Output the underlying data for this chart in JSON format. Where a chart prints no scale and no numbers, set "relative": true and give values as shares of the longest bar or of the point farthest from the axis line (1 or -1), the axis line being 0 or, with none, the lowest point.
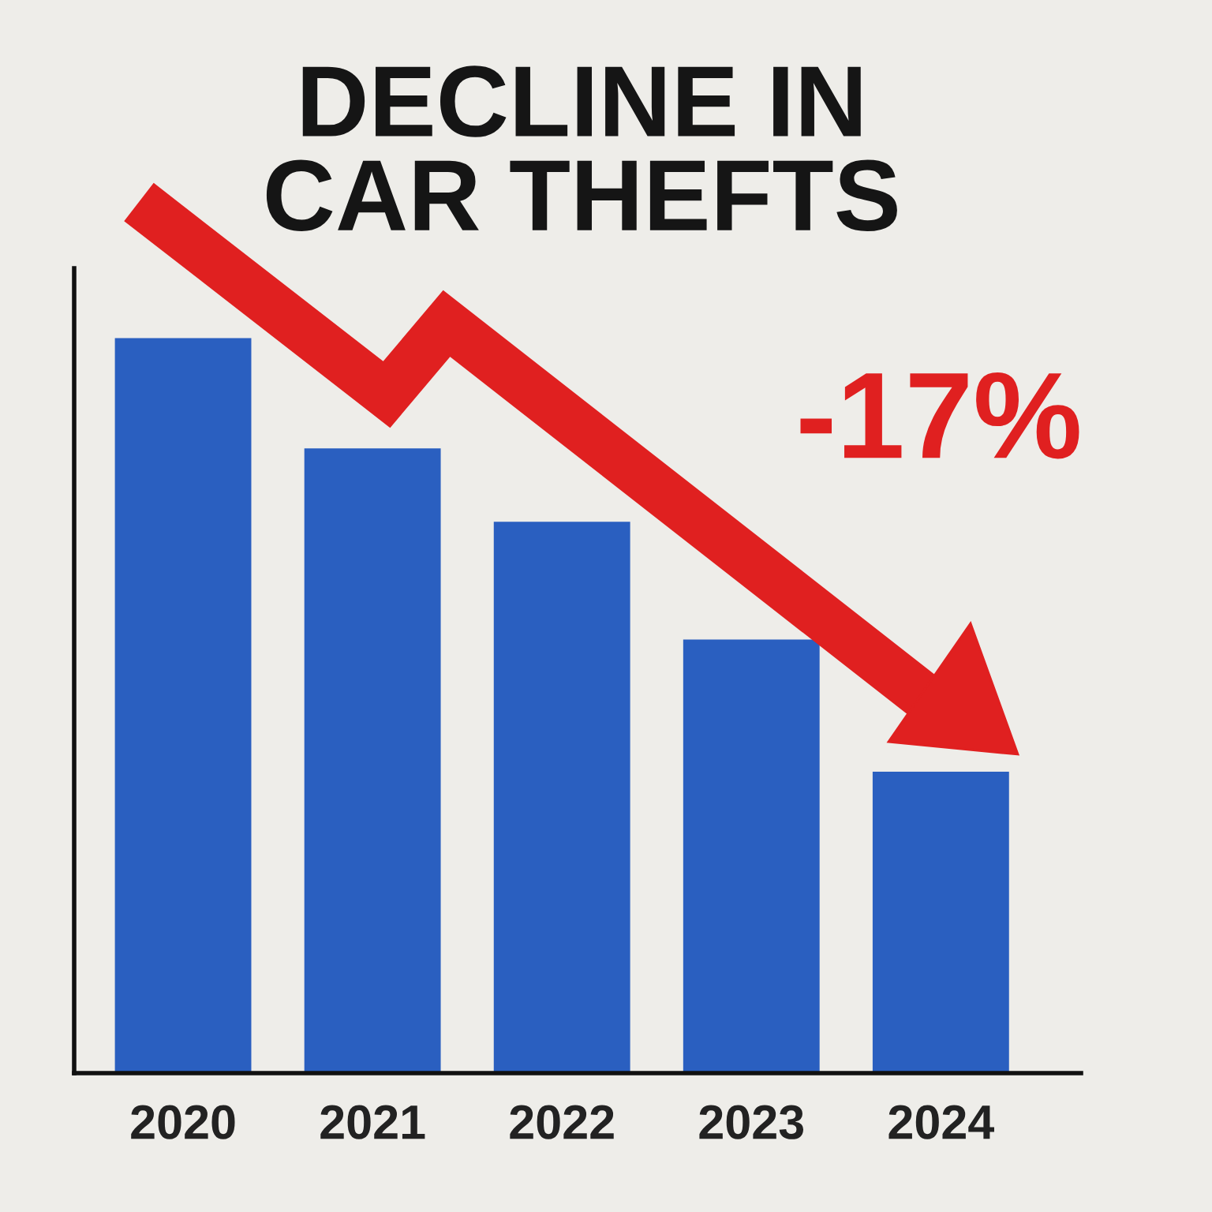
{
  "chart_data": {
    "type": "bar",
    "title": "DECLINE IN\nCAR THEFTS",
    "categories": [
      "2020",
      "2021",
      "2022",
      "2023",
      "2024"
    ],
    "values": [
      1,
      0.85,
      0.75,
      0.59,
      0.41
    ],
    "color": "#2a5fc0",
    "relative": true,
    "grid": false,
    "legend": false,
    "annotations": [
      "-17%"
    ]
  }
}
